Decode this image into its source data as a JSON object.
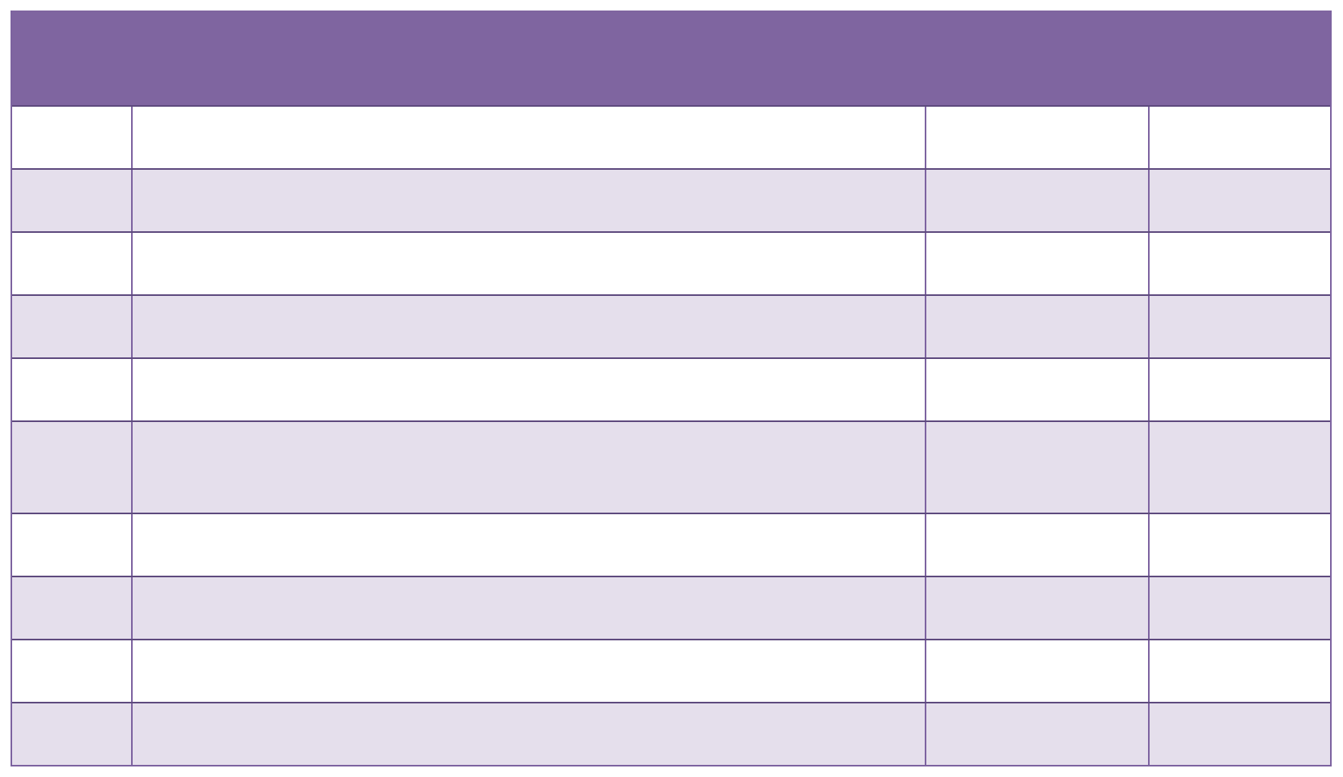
{
  "table": {
    "header_color": "#7f65a0",
    "border_color": "#7d63a0",
    "alt_row_color": "#e5dfec",
    "header_text": "",
    "rows": [
      [
        "",
        "",
        "",
        ""
      ],
      [
        "",
        "",
        "",
        ""
      ],
      [
        "",
        "",
        "",
        ""
      ],
      [
        "",
        "",
        "",
        ""
      ],
      [
        "",
        "",
        "",
        ""
      ],
      [
        "",
        "",
        "",
        ""
      ],
      [
        "",
        "",
        "",
        ""
      ],
      [
        "",
        "",
        "",
        ""
      ],
      [
        "",
        "",
        "",
        ""
      ],
      [
        "",
        "",
        "",
        ""
      ]
    ]
  }
}
